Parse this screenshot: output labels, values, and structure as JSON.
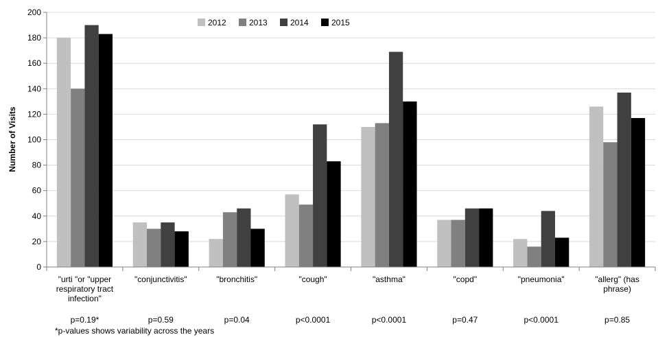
{
  "chart_data": {
    "type": "bar",
    "ylabel": "Number of Visits",
    "ylim": [
      0,
      200
    ],
    "yticks": [
      0,
      20,
      40,
      60,
      80,
      100,
      120,
      140,
      160,
      180,
      200
    ],
    "grid": true,
    "legend_position": "top-center",
    "categories": [
      [
        "\"urti \"or \"upper",
        "respiratory tract",
        "infection\""
      ],
      [
        "\"conjunctivitis\""
      ],
      [
        "\"bronchitis\""
      ],
      [
        "\"cough\""
      ],
      [
        "\"asthma\""
      ],
      [
        "\"copd\""
      ],
      [
        "\"pneumonia\""
      ],
      [
        "\"allerg\" (has",
        "phrase)"
      ]
    ],
    "p_values": [
      "p=0.19*",
      "p=0.59",
      "p=0.04",
      "p<0.0001",
      "p<0.0001",
      "p=0.47",
      "p<0.0001",
      "p=0.85"
    ],
    "footnote": "*p-values shows variability across the years",
    "series": [
      {
        "name": "2012",
        "color": "#c0c0c0",
        "values": [
          180,
          35,
          22,
          57,
          110,
          37,
          22,
          126
        ]
      },
      {
        "name": "2013",
        "color": "#808080",
        "values": [
          140,
          30,
          43,
          49,
          113,
          37,
          16,
          98
        ]
      },
      {
        "name": "2014",
        "color": "#404040",
        "values": [
          190,
          35,
          46,
          112,
          169,
          46,
          44,
          137
        ]
      },
      {
        "name": "2015",
        "color": "#000000",
        "values": [
          183,
          28,
          30,
          83,
          130,
          46,
          23,
          117
        ]
      }
    ]
  }
}
